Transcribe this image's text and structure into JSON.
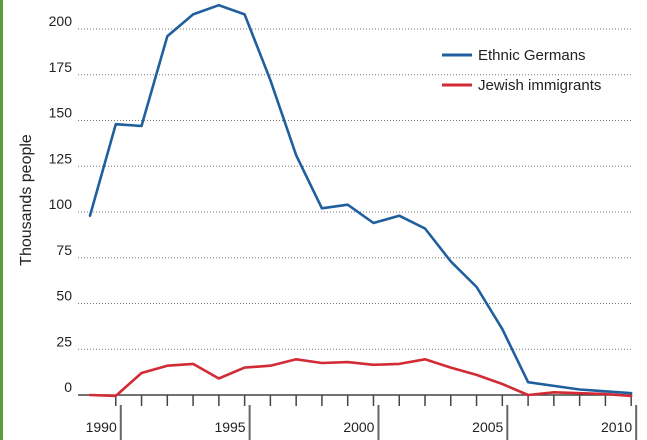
{
  "chart_data": {
    "type": "line",
    "title": "",
    "xlabel": "",
    "ylabel": "Thousands people",
    "xlim": [
      1989,
      2010
    ],
    "ylim": [
      0,
      215
    ],
    "yticks": [
      0,
      25,
      50,
      75,
      100,
      125,
      150,
      175,
      200
    ],
    "xtick_labels": [
      "1990",
      "1995",
      "2000",
      "2005",
      "2010"
    ],
    "grid": "horizontal-dotted",
    "legend_position": "top-right",
    "x": [
      1989,
      1990,
      1991,
      1992,
      1993,
      1994,
      1995,
      1996,
      1997,
      1998,
      1999,
      2000,
      2001,
      2002,
      2003,
      2004,
      2005,
      2006,
      2007,
      2008,
      2009,
      2010
    ],
    "series": [
      {
        "name": "Ethnic Germans",
        "color": "#1f5f9e",
        "values": [
          98,
          148,
          147,
          196,
          208,
          213,
          208,
          172,
          131,
          102,
          104,
          94,
          98,
          91,
          73,
          59,
          36,
          7,
          5,
          3,
          2,
          1
        ]
      },
      {
        "name": "Jewish immigrants",
        "color": "#d22b35",
        "values": [
          0,
          -0.5,
          12,
          16,
          17,
          9,
          15,
          16,
          19.5,
          17.5,
          18,
          16.5,
          17,
          19.5,
          15,
          11,
          6,
          0,
          1.5,
          1,
          0.5,
          -0.5
        ]
      }
    ]
  },
  "colors": {
    "left_bar": "#5a9b3c",
    "grid": "#777777",
    "axis": "#444444"
  }
}
